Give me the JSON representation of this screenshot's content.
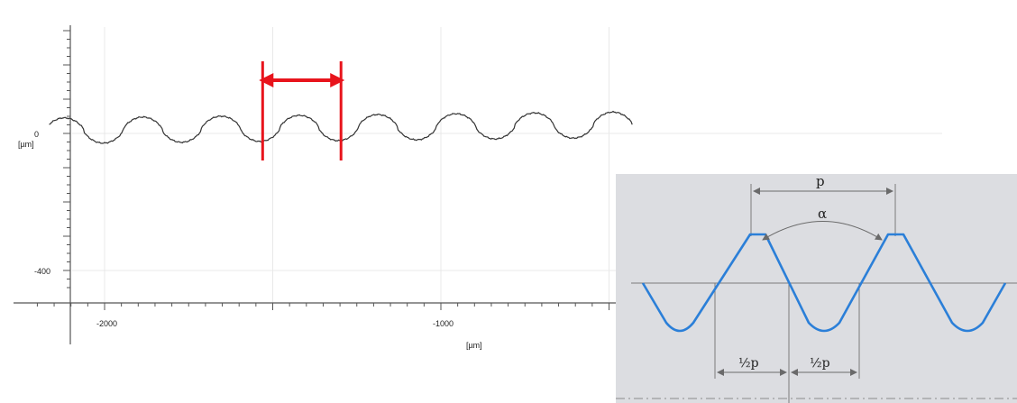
{
  "chart_data": {
    "type": "line",
    "x_unit_label": "[µm]",
    "y_unit_label": "[µm]",
    "x_ticks": [
      {
        "value": -2000,
        "label": "-2000"
      },
      {
        "value": -1000,
        "label": "-1000"
      }
    ],
    "y_ticks": [
      {
        "value": 0,
        "label": "0"
      },
      {
        "value": -400,
        "label": "-400"
      }
    ],
    "xlim": [
      -2100,
      -380
    ],
    "ylim": [
      -500,
      320
    ],
    "grid": true,
    "series": [
      {
        "color": "#333333",
        "profile": {
          "start_x": -2165,
          "end_x": -430,
          "pitch": 233,
          "first_peak_x": -2120,
          "crest_y": 45,
          "root_y": -30,
          "drift_per_um": 0.0104
        }
      }
    ],
    "annotation": {
      "color": "#e8141c",
      "marker_x": [
        -1530,
        -1297
      ],
      "arrow": "double-headed",
      "meaning": "pitch"
    }
  },
  "inset": {
    "background": "#dcdde1",
    "line_color": "#2b7fd8",
    "labels": {
      "pitch": "p",
      "angle": "α",
      "half_pitch_left": "½p",
      "half_pitch_right": "½p"
    }
  }
}
